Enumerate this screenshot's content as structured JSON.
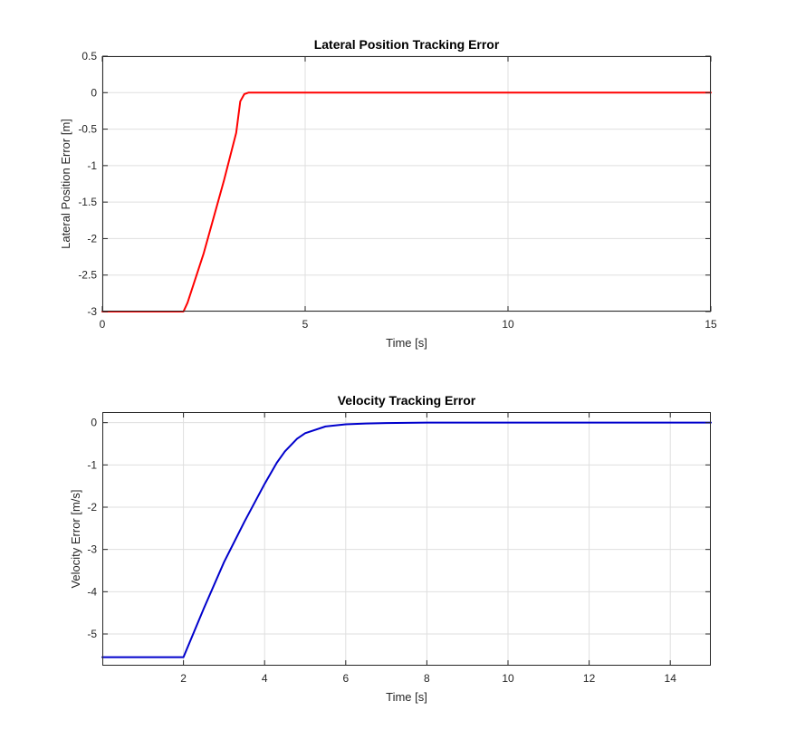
{
  "chart_data": [
    {
      "type": "line",
      "title": "Lateral Position Tracking Error",
      "xlabel": "Time [s]",
      "ylabel": "Lateral Position Error [m]",
      "xlim": [
        0,
        15
      ],
      "ylim": [
        -3,
        0.5
      ],
      "xticks": [
        0,
        5,
        10,
        15
      ],
      "xtick_labels": [
        "0",
        "5",
        "10",
        "15"
      ],
      "yticks": [
        0.5,
        0,
        -0.5,
        -1,
        -1.5,
        -2,
        -2.5,
        -3
      ],
      "ytick_labels": [
        "0.5",
        "0",
        "-0.5",
        "-1",
        "-1.5",
        "-2",
        "-2.5",
        "-3"
      ],
      "grid": true,
      "series": [
        {
          "color": "#ff0000",
          "x": [
            0,
            2.0,
            2.1,
            2.5,
            3.0,
            3.3,
            3.4,
            3.5,
            3.6,
            5,
            10,
            15
          ],
          "y": [
            -3,
            -3,
            -2.88,
            -2.2,
            -1.2,
            -0.55,
            -0.12,
            -0.02,
            0,
            0,
            0,
            0
          ]
        }
      ]
    },
    {
      "type": "line",
      "title": "Velocity Tracking Error",
      "xlabel": "Time [s]",
      "ylabel": "Velocity Error [m/s]",
      "xlim": [
        0,
        15
      ],
      "ylim": [
        -5.75,
        0.25
      ],
      "xticks": [
        2,
        4,
        6,
        8,
        10,
        12,
        14
      ],
      "xtick_labels": [
        "2",
        "4",
        "6",
        "8",
        "10",
        "12",
        "14"
      ],
      "yticks": [
        0,
        -1,
        -2,
        -3,
        -4,
        -5
      ],
      "ytick_labels": [
        "0",
        "-1",
        "-2",
        "-3",
        "-4",
        "-5"
      ],
      "grid": true,
      "series": [
        {
          "color": "#0000cc",
          "x": [
            0,
            2.0,
            2.5,
            3.0,
            3.5,
            4.0,
            4.3,
            4.5,
            4.8,
            5.0,
            5.5,
            6.0,
            6.5,
            7.0,
            8.0,
            10,
            15
          ],
          "y": [
            -5.55,
            -5.55,
            -4.4,
            -3.3,
            -2.35,
            -1.45,
            -0.95,
            -0.68,
            -0.38,
            -0.25,
            -0.09,
            -0.04,
            -0.02,
            -0.01,
            0,
            0,
            0
          ]
        }
      ]
    }
  ]
}
